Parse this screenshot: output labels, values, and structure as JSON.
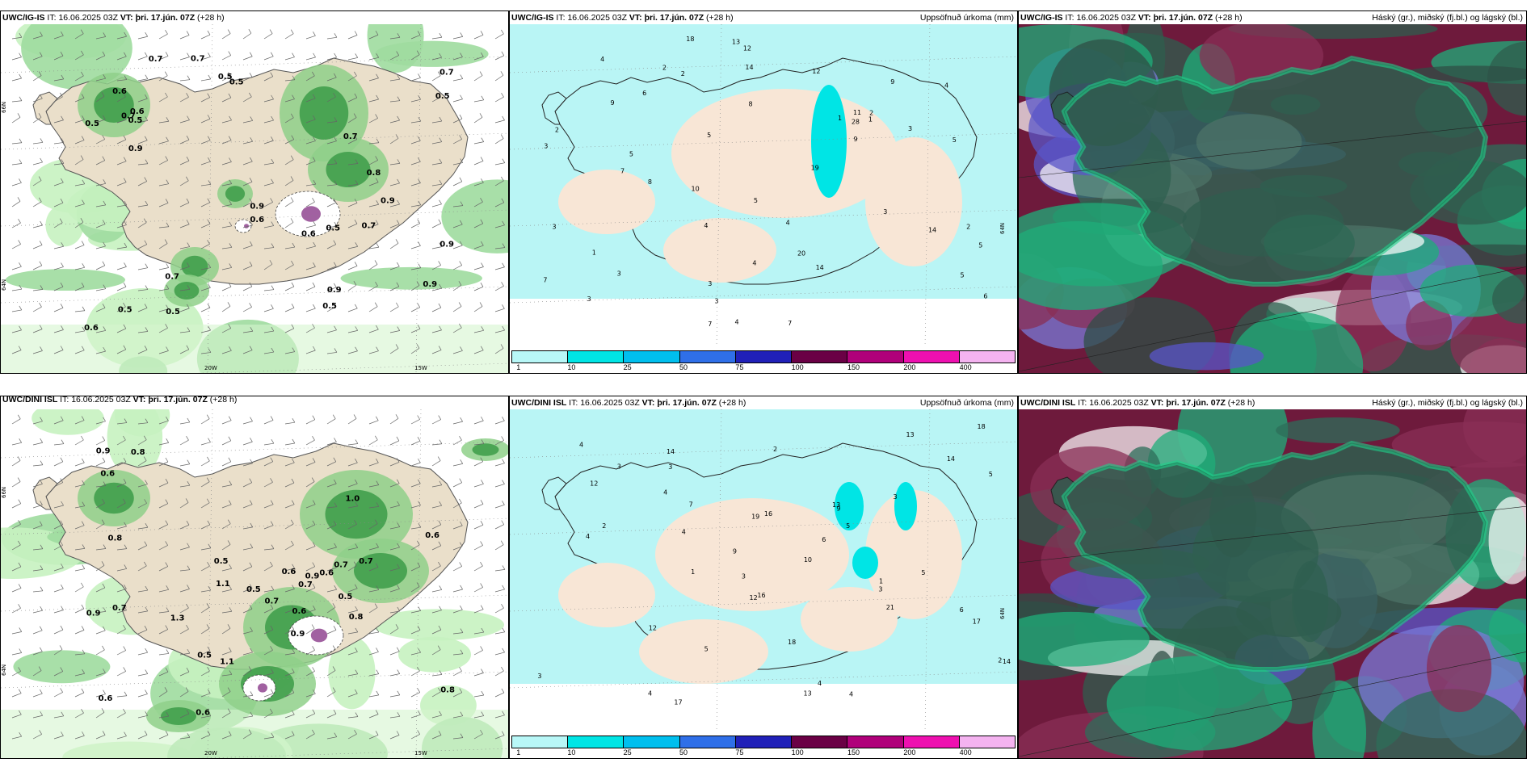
{
  "panels": [
    {
      "model": "UWC/IG-IS",
      "it_label": "IT:",
      "it": "16.06.2025 03Z",
      "vt_label": "VT:",
      "vt": "þri. 17.jún. 07Z",
      "lead": "(+28 h)",
      "right": "",
      "kind": "wind"
    },
    {
      "model": "UWC/IG-IS",
      "it_label": "IT:",
      "it": "16.06.2025 03Z",
      "vt_label": "VT:",
      "vt": "þri. 17.jún. 07Z",
      "lead": "(+28 h)",
      "right": "Uppsöfnuð úrkoma (mm)",
      "kind": "precip"
    },
    {
      "model": "UWC/IG-IS",
      "it_label": "IT:",
      "it": "16.06.2025 03Z",
      "vt_label": "VT:",
      "vt": "þri. 17.jún. 07Z",
      "lead": "(+28 h)",
      "right": "Háský (gr.), miðský (fj.bl.) og lágský (bl.)",
      "kind": "cloud"
    },
    {
      "model": "UWC/DINI ISL",
      "it_label": "IT:",
      "it": "16.06.2025 03Z",
      "vt_label": "VT:",
      "vt": "þri. 17.jún. 07Z",
      "lead": "(+28 h)",
      "right": "",
      "kind": "wind"
    },
    {
      "model": "UWC/DINI ISL",
      "it_label": "IT:",
      "it": "16.06.2025 03Z",
      "vt_label": "VT:",
      "vt": "þri. 17.jún. 07Z",
      "lead": "(+28 h)",
      "right": "Uppsöfnuð úrkoma (mm)",
      "kind": "precip"
    },
    {
      "model": "UWC/DINI ISL",
      "it_label": "IT:",
      "it": "16.06.2025 03Z",
      "vt_label": "VT:",
      "vt": "þri. 17.jún. 07Z",
      "lead": "(+28 h)",
      "right": "Háský (gr.), miðský (fj.bl.) og lágský (bl.)",
      "kind": "cloud"
    }
  ],
  "colorbar": {
    "labels": [
      "1",
      "10",
      "25",
      "50",
      "75",
      "100",
      "150",
      "200",
      "400"
    ],
    "colors": [
      "#b8f7f7",
      "#00e5e5",
      "#00bfee",
      "#2f6fe8",
      "#2020b8",
      "#6a0045",
      "#b0007a",
      "#ee10b0",
      "#f4b3f0"
    ]
  },
  "axis_labels": {
    "lon20": "20W",
    "lon15": "15W",
    "lat66": "66N",
    "lat64": "64N",
    "lat63": "63N"
  },
  "wind_labels_top": [
    "0.5",
    "0.9",
    "0.5",
    "0.6",
    "0.5",
    "0.7",
    "0.7",
    "0.5",
    "0.6",
    "0.7",
    "0.9",
    "0.9",
    "0.7",
    "0.8",
    "0.5",
    "0.9",
    "0.7",
    "0.5",
    "0.6",
    "0.6",
    "0.5",
    "0.9",
    "0.5",
    "0.7",
    "0.5",
    "0.6",
    "0.9",
    "0.7"
  ],
  "wind_labels_bottom": [
    "1.3",
    "0.7",
    "1.1",
    "0.9",
    "0.6",
    "0.6",
    "0.7",
    "0.8",
    "0.9",
    "1.0",
    "0.5",
    "0.9",
    "0.6",
    "0.7",
    "0.5",
    "0.6",
    "0.9",
    "0.6",
    "0.8",
    "0.7",
    "1.1",
    "0.5",
    "0.6",
    "0.8",
    "0.7",
    "0.5",
    "0.6",
    "0.8"
  ],
  "precip_labels_top": [
    "6",
    "7",
    "5",
    "3",
    "3",
    "2",
    "3",
    "3",
    "2",
    "1",
    "3",
    "4",
    "5",
    "20",
    "14",
    "28",
    "12",
    "18",
    "19",
    "14",
    "14",
    "10",
    "9",
    "13",
    "7",
    "9",
    "6",
    "11",
    "9",
    "12",
    "3",
    "1",
    "2",
    "4",
    "8",
    "5",
    "1",
    "7",
    "2",
    "2",
    "4",
    "3",
    "5",
    "4",
    "5",
    "3",
    "5",
    "4",
    "8",
    "7",
    "4"
  ],
  "precip_labels_bottom": [
    "4",
    "3",
    "5",
    "4",
    "3",
    "17",
    "9",
    "9",
    "2",
    "4",
    "3",
    "13",
    "14",
    "18",
    "21",
    "17",
    "16",
    "12",
    "14",
    "13",
    "10",
    "12",
    "14",
    "7",
    "16",
    "18",
    "19",
    "12",
    "13",
    "6",
    "2",
    "4",
    "3",
    "1",
    "5",
    "3",
    "4",
    "2",
    "4",
    "3",
    "1",
    "5",
    "6",
    "5",
    "4"
  ]
}
